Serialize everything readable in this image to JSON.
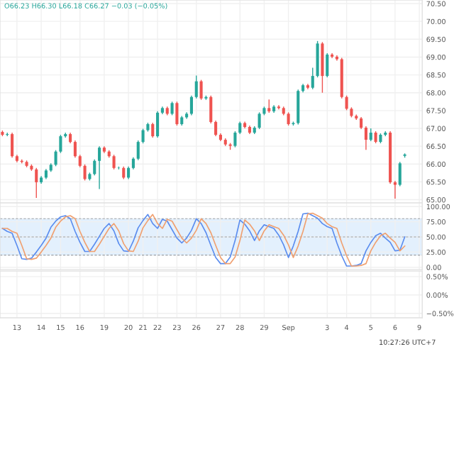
{
  "chart_data": [
    {
      "type": "candlestick",
      "annotations": [
        "O66.23 H66.30 L66.18 C66.27 −0.03 (−0.05%)"
      ],
      "colors": [
        "#ef5350",
        "#26a69a",
        "#ef5350",
        "#ef5350",
        "#ef5350",
        "#ef5350",
        "#ef5350",
        "#ef5350",
        "#26a69a",
        "#26a69a",
        "#26a69a",
        "#26a69a",
        "#26a69a",
        "#26a69a",
        "#ef5350",
        "#ef5350",
        "#ef5350",
        "#ef5350",
        "#26a69a",
        "#26a69a",
        "#26a69a",
        "#ef5350",
        "#ef5350",
        "#ef5350",
        "#26a69a",
        "#ef5350",
        "#26a69a",
        "#26a69a",
        "#26a69a",
        "#26a69a",
        "#26a69a",
        "#ef5350",
        "#26a69a",
        "#26a69a",
        "#ef5350",
        "#26a69a",
        "#ef5350",
        "#26a69a",
        "#26a69a",
        "#26a69a",
        "#26a69a",
        "#ef5350",
        "#26a69a",
        "#ef5350",
        "#ef5350",
        "#ef5350",
        "#ef5350",
        "#ef5350",
        "#26a69a",
        "#26a69a",
        "#ef5350",
        "#ef5350",
        "#26a69a",
        "#26a69a",
        "#26a69a",
        "#ef5350",
        "#26a69a",
        "#ef5350",
        "#ef5350",
        "#ef5350",
        "#26a69a",
        "#26a69a",
        "#26a69a",
        "#ef5350",
        "#26a69a",
        "#26a69a",
        "#ef5350",
        "#26a69a",
        "#ef5350",
        "#ef5350",
        "#ef5350",
        "#ef5350",
        "#ef5350",
        "#ef5350",
        "#ef5350",
        "#ef5350",
        "#26a69a",
        "#ef5350",
        "#26a69a",
        "#26a69a",
        "#ef5350",
        "#ef5350",
        "#26a69a",
        "#26a69a",
        null,
        null,
        null
      ],
      "ohlc": [
        [
          66.9,
          66.94,
          66.78,
          66.82
        ],
        [
          66.82,
          66.88,
          66.78,
          66.84
        ],
        [
          66.84,
          66.88,
          66.18,
          66.22
        ],
        [
          66.22,
          66.26,
          66.05,
          66.09
        ],
        [
          66.09,
          66.13,
          66.02,
          66.06
        ],
        [
          66.06,
          66.1,
          65.91,
          65.95
        ],
        [
          65.95,
          65.99,
          65.81,
          65.85
        ],
        [
          65.85,
          65.89,
          65.05,
          65.49
        ],
        [
          65.49,
          65.66,
          65.45,
          65.62
        ],
        [
          65.62,
          65.86,
          65.58,
          65.82
        ],
        [
          65.82,
          66.02,
          65.78,
          65.98
        ],
        [
          65.98,
          66.39,
          65.94,
          66.35
        ],
        [
          66.35,
          66.82,
          66.31,
          66.78
        ],
        [
          66.78,
          66.88,
          66.74,
          66.84
        ],
        [
          66.84,
          66.88,
          66.58,
          66.62
        ],
        [
          66.62,
          66.66,
          66.18,
          66.22
        ],
        [
          66.22,
          66.26,
          65.91,
          65.95
        ],
        [
          65.95,
          65.99,
          65.54,
          65.58
        ],
        [
          65.58,
          65.76,
          65.54,
          65.72
        ],
        [
          65.72,
          66.13,
          65.68,
          66.09
        ],
        [
          66.09,
          66.5,
          65.3,
          66.46
        ],
        [
          66.46,
          66.5,
          66.31,
          66.35
        ],
        [
          66.35,
          66.39,
          66.18,
          66.22
        ],
        [
          66.22,
          66.26,
          65.85,
          65.89
        ],
        [
          65.89,
          65.93,
          65.85,
          65.89
        ],
        [
          65.89,
          65.93,
          65.58,
          65.62
        ],
        [
          65.62,
          65.93,
          65.58,
          65.89
        ],
        [
          65.89,
          66.19,
          65.85,
          66.15
        ],
        [
          66.15,
          66.66,
          66.11,
          66.62
        ],
        [
          66.62,
          66.99,
          66.58,
          66.95
        ],
        [
          66.95,
          67.16,
          66.91,
          67.12
        ],
        [
          67.12,
          67.16,
          66.74,
          66.78
        ],
        [
          66.78,
          67.48,
          66.74,
          67.44
        ],
        [
          67.44,
          67.61,
          67.4,
          67.57
        ],
        [
          67.57,
          67.61,
          67.37,
          67.41
        ],
        [
          67.41,
          67.75,
          67.37,
          67.71
        ],
        [
          67.71,
          67.75,
          67.08,
          67.12
        ],
        [
          67.12,
          67.35,
          67.08,
          67.31
        ],
        [
          67.31,
          67.45,
          67.27,
          67.41
        ],
        [
          67.41,
          67.92,
          67.37,
          67.88
        ],
        [
          67.88,
          68.48,
          67.84,
          68.32
        ],
        [
          68.32,
          68.36,
          67.8,
          67.84
        ],
        [
          67.84,
          67.92,
          67.8,
          67.88
        ],
        [
          67.88,
          67.92,
          67.14,
          67.18
        ],
        [
          67.18,
          67.22,
          66.78,
          66.82
        ],
        [
          66.82,
          66.86,
          66.64,
          66.68
        ],
        [
          66.68,
          66.72,
          66.51,
          66.55
        ],
        [
          66.55,
          66.59,
          66.4,
          66.51
        ],
        [
          66.51,
          66.92,
          66.47,
          66.88
        ],
        [
          66.88,
          67.19,
          66.84,
          67.15
        ],
        [
          67.15,
          67.19,
          67.0,
          67.04
        ],
        [
          67.04,
          67.08,
          66.84,
          66.88
        ],
        [
          66.88,
          67.06,
          66.84,
          67.02
        ],
        [
          67.02,
          67.45,
          66.98,
          67.41
        ],
        [
          67.41,
          67.61,
          67.37,
          67.57
        ],
        [
          67.57,
          67.81,
          67.44,
          67.48
        ],
        [
          67.48,
          67.65,
          67.44,
          67.61
        ],
        [
          67.61,
          67.65,
          67.53,
          67.57
        ],
        [
          67.57,
          67.61,
          67.37,
          67.41
        ],
        [
          67.41,
          67.45,
          67.08,
          67.12
        ],
        [
          67.12,
          67.19,
          67.08,
          67.15
        ],
        [
          67.15,
          68.09,
          67.11,
          68.05
        ],
        [
          68.05,
          68.25,
          68.01,
          68.21
        ],
        [
          68.21,
          68.25,
          68.1,
          68.14
        ],
        [
          68.14,
          68.7,
          68.1,
          68.47
        ],
        [
          68.47,
          69.45,
          68.43,
          69.38
        ],
        [
          69.38,
          69.42,
          68.0,
          68.47
        ],
        [
          68.47,
          69.11,
          68.43,
          69.07
        ],
        [
          69.07,
          69.11,
          68.97,
          69.01
        ],
        [
          69.01,
          69.05,
          68.9,
          68.94
        ],
        [
          68.94,
          68.98,
          67.84,
          67.88
        ],
        [
          67.88,
          67.92,
          67.51,
          67.55
        ],
        [
          67.55,
          67.59,
          67.31,
          67.35
        ],
        [
          67.35,
          67.39,
          67.24,
          67.28
        ],
        [
          67.28,
          67.32,
          66.98,
          67.02
        ],
        [
          67.02,
          67.06,
          66.4,
          66.68
        ],
        [
          66.68,
          67.0,
          66.64,
          66.88
        ],
        [
          66.88,
          66.92,
          66.58,
          66.62
        ],
        [
          66.62,
          66.86,
          66.58,
          66.82
        ],
        [
          66.82,
          66.92,
          66.78,
          66.88
        ],
        [
          66.88,
          66.92,
          65.45,
          65.49
        ],
        [
          65.49,
          65.53,
          65.03,
          65.42
        ],
        [
          65.42,
          66.06,
          65.38,
          66.02
        ],
        [
          66.23,
          66.3,
          66.18,
          66.27
        ],
        null,
        null,
        null
      ],
      "ylim": [
        64.91,
        70.6
      ],
      "yticks": [
        {
          "value": 65,
          "label": "65.00"
        },
        {
          "value": 65.5,
          "label": "65.50"
        },
        {
          "value": 66,
          "label": "66.00"
        },
        {
          "value": 66.5,
          "label": "66.50"
        },
        {
          "value": 67,
          "label": "67.00"
        },
        {
          "value": 67.5,
          "label": "67.50"
        },
        {
          "value": 68,
          "label": "68.00"
        },
        {
          "value": 68.5,
          "label": "68.50"
        },
        {
          "value": 69,
          "label": "69.00"
        },
        {
          "value": 69.5,
          "label": "69.50"
        },
        {
          "value": 70,
          "label": "70.00"
        },
        {
          "value": 70.5,
          "label": "70.50"
        }
      ],
      "grid": true,
      "tick_labels": "y"
    },
    {
      "type": "line",
      "ylim": [
        -4,
        106
      ],
      "grid": true,
      "yticks": [
        {
          "value": 0,
          "label": "0.00"
        },
        {
          "value": 25,
          "label": "25.00"
        },
        {
          "value": 50,
          "label": "50.00"
        },
        {
          "value": 75,
          "label": "75.00"
        },
        {
          "value": 100,
          "label": "100.00"
        }
      ],
      "series": [
        {
          "color": "#5b8def",
          "values": [
            64,
            59,
            56,
            36,
            14,
            13,
            15,
            25,
            36,
            48,
            66,
            76,
            83,
            85,
            80,
            59,
            41,
            26,
            26,
            38,
            51,
            64,
            72,
            60,
            39,
            27,
            26,
            43,
            65,
            77,
            87,
            72,
            64,
            79,
            76,
            62,
            48,
            40,
            48,
            61,
            80,
            72,
            57,
            36,
            16,
            6,
            6,
            17,
            44,
            78,
            71,
            60,
            44,
            60,
            70,
            67,
            64,
            53,
            37,
            16,
            35,
            59,
            88,
            89,
            85,
            81,
            72,
            67,
            64,
            40,
            19,
            2,
            2,
            3,
            6,
            27,
            41,
            52,
            56,
            48,
            41,
            27,
            28,
            50,
            null,
            null,
            null
          ]
        },
        {
          "color": "#f0a070",
          "values": [
            64,
            64,
            59,
            56,
            36,
            14,
            13,
            15,
            25,
            36,
            48,
            66,
            76,
            83,
            85,
            80,
            59,
            41,
            26,
            26,
            38,
            51,
            64,
            72,
            60,
            39,
            27,
            26,
            43,
            65,
            77,
            87,
            72,
            64,
            79,
            76,
            62,
            48,
            40,
            48,
            61,
            80,
            72,
            57,
            36,
            16,
            6,
            6,
            17,
            44,
            78,
            71,
            60,
            44,
            60,
            70,
            67,
            64,
            53,
            37,
            16,
            35,
            59,
            88,
            89,
            85,
            81,
            72,
            67,
            64,
            40,
            19,
            2,
            2,
            3,
            6,
            27,
            41,
            52,
            56,
            48,
            41,
            27,
            35,
            null,
            null,
            null
          ]
        }
      ],
      "bands": [
        {
          "axis": "y",
          "from": 20,
          "to": 80,
          "color": "#e3f0fd"
        }
      ],
      "ref_lines": [
        {
          "axis": "y",
          "value": 80,
          "line_style": "dashed",
          "color": "#9aa0a6"
        },
        {
          "axis": "y",
          "value": 50,
          "line_style": "dashed",
          "color": "#9aa0a6"
        },
        {
          "axis": "y",
          "value": 20,
          "line_style": "dashed",
          "color": "#9aa0a6"
        }
      ],
      "tick_labels": "y"
    },
    {
      "type": "line",
      "ylim": [
        -0.62,
        0.65
      ],
      "grid": true,
      "categories": [
        null,
        null,
        null,
        "13",
        null,
        null,
        null,
        null,
        "14",
        null,
        null,
        null,
        "15",
        null,
        null,
        null,
        "16",
        null,
        null,
        null,
        null,
        "19",
        null,
        null,
        null,
        null,
        "20",
        null,
        null,
        "21",
        null,
        null,
        "22",
        null,
        null,
        null,
        "23",
        null,
        null,
        null,
        "26",
        null,
        null,
        null,
        null,
        "27",
        null,
        null,
        null,
        "28",
        null,
        null,
        null,
        null,
        "29",
        null,
        null,
        null,
        null,
        "Sep",
        null,
        null,
        null,
        null,
        null,
        null,
        null,
        "3",
        null,
        null,
        null,
        "4",
        null,
        null,
        null,
        null,
        "5",
        null,
        null,
        null,
        null,
        "6",
        null,
        null,
        null,
        null,
        "9"
      ],
      "yticks": [
        {
          "value": -0.5,
          "label": "−0.50%"
        },
        {
          "value": 0,
          "label": "0.00%"
        },
        {
          "value": 0.5,
          "label": "0.50%"
        }
      ],
      "annotations": [
        "10:27:26 UTC+7"
      ]
    }
  ]
}
